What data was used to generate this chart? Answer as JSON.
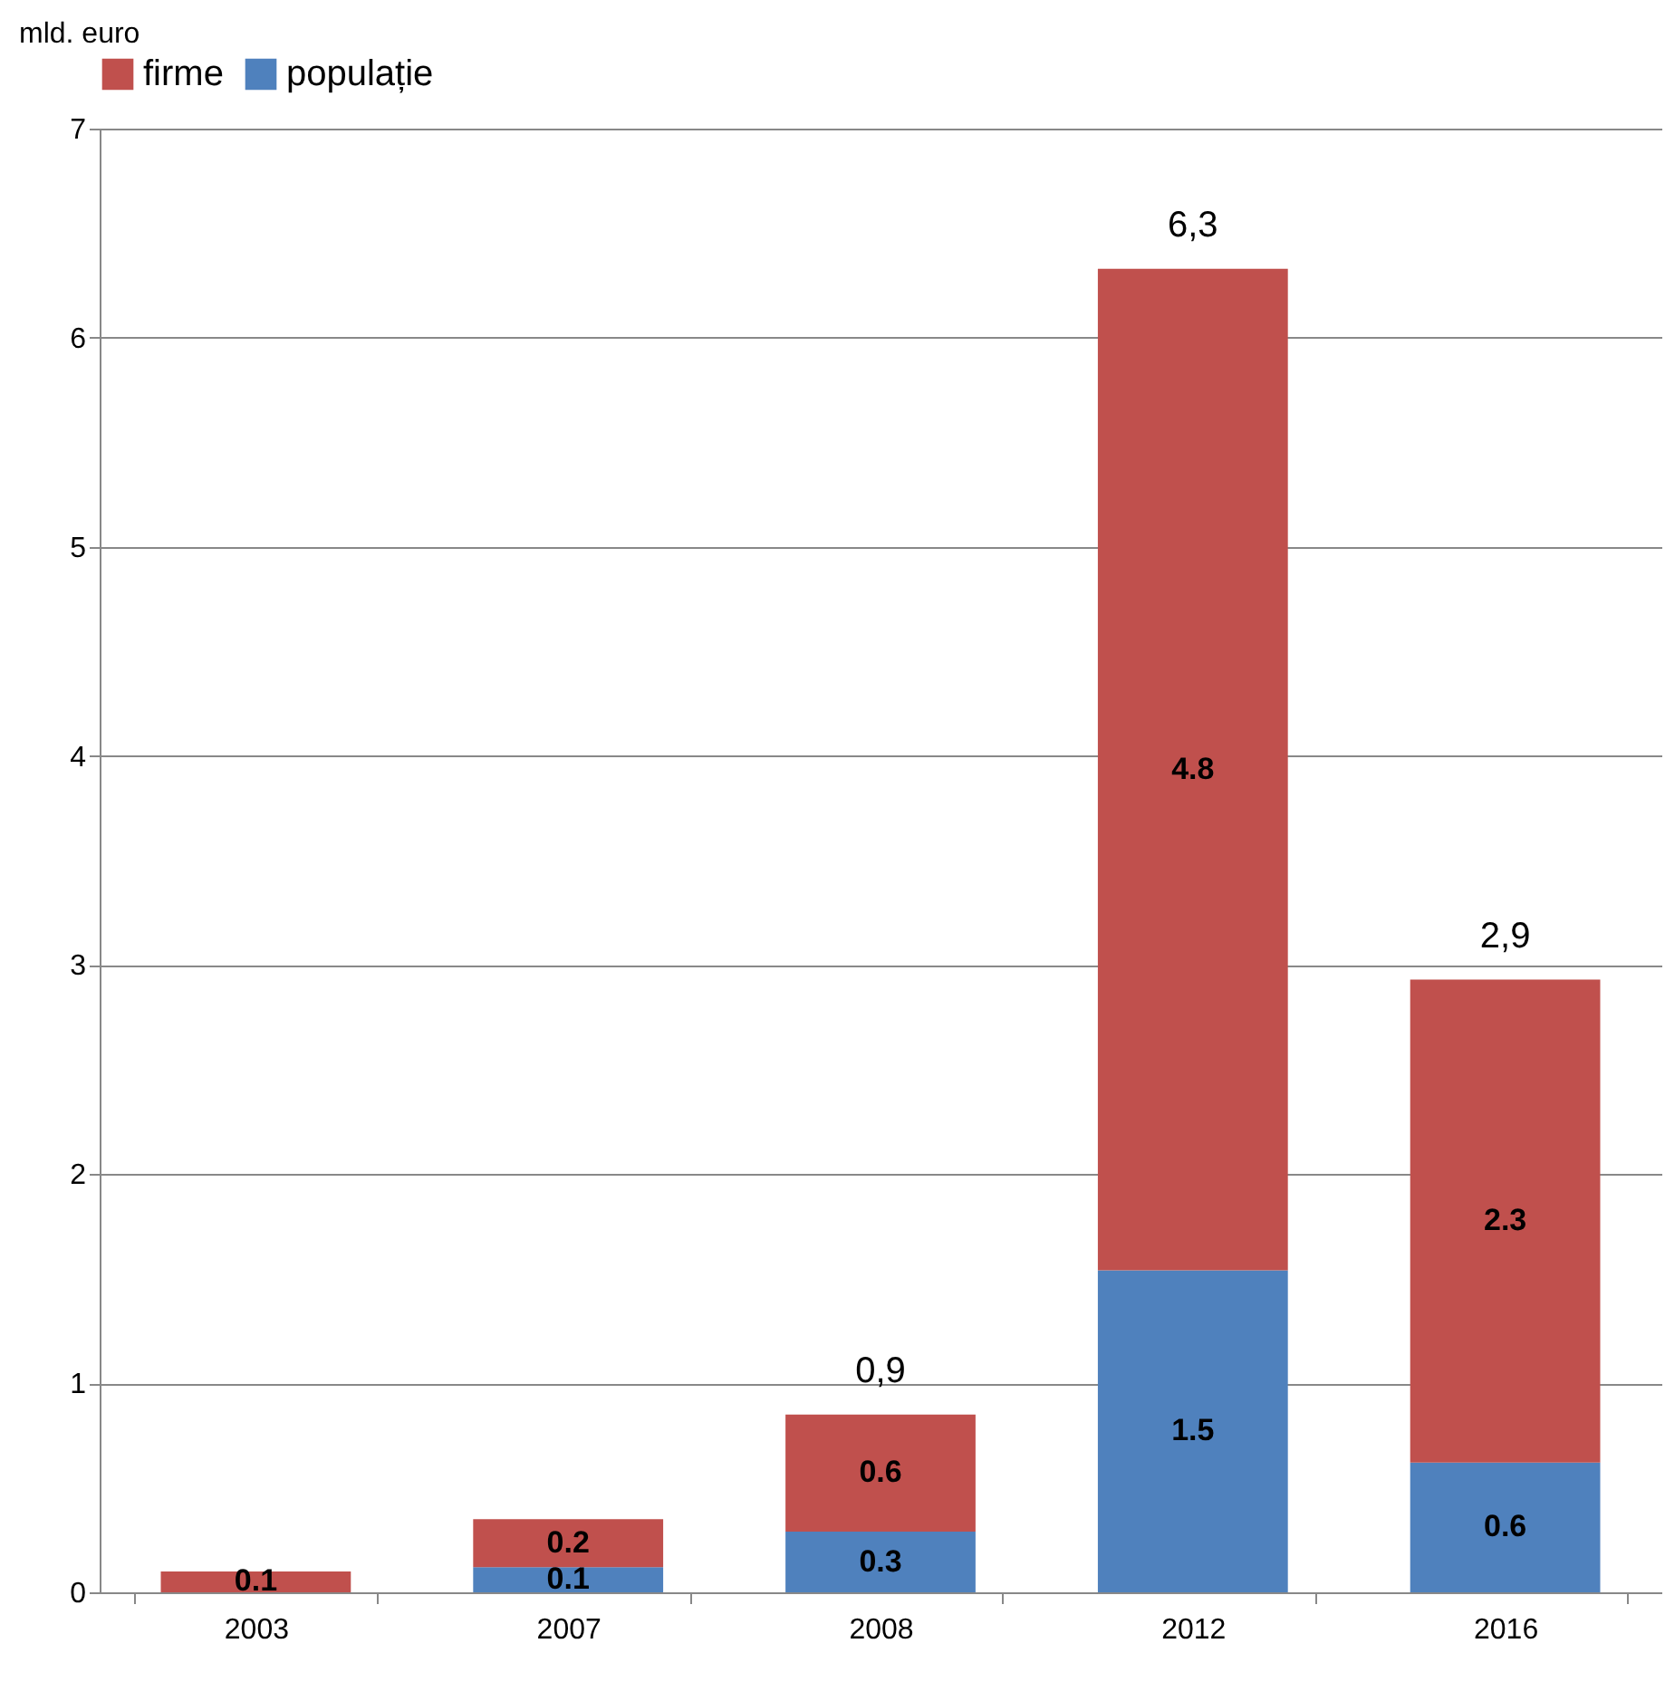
{
  "chart_data": {
    "type": "bar",
    "ylabel": "mld. euro",
    "categories": [
      "2003",
      "2007",
      "2008",
      "2012",
      "2016"
    ],
    "series": [
      {
        "name": "populație",
        "color": "#4f81bd",
        "values": [
          0,
          0.12,
          0.29,
          1.54,
          0.62
        ],
        "value_labels": [
          null,
          "0.1",
          "0.3",
          "1.5",
          "0.6"
        ]
      },
      {
        "name": "firme",
        "color": "#c0504d",
        "values": [
          0.1,
          0.23,
          0.56,
          4.79,
          2.31
        ],
        "value_labels": [
          "0.1",
          "0.2",
          "0.6",
          "4.8",
          "2.3"
        ]
      }
    ],
    "totals": [
      null,
      null,
      "0,9",
      "6,3",
      "2,9"
    ],
    "stacked": true,
    "ylim": [
      0,
      7
    ],
    "yticks": [
      0,
      1,
      2,
      3,
      4,
      5,
      6,
      7
    ],
    "grid": "y",
    "legend": "top"
  }
}
